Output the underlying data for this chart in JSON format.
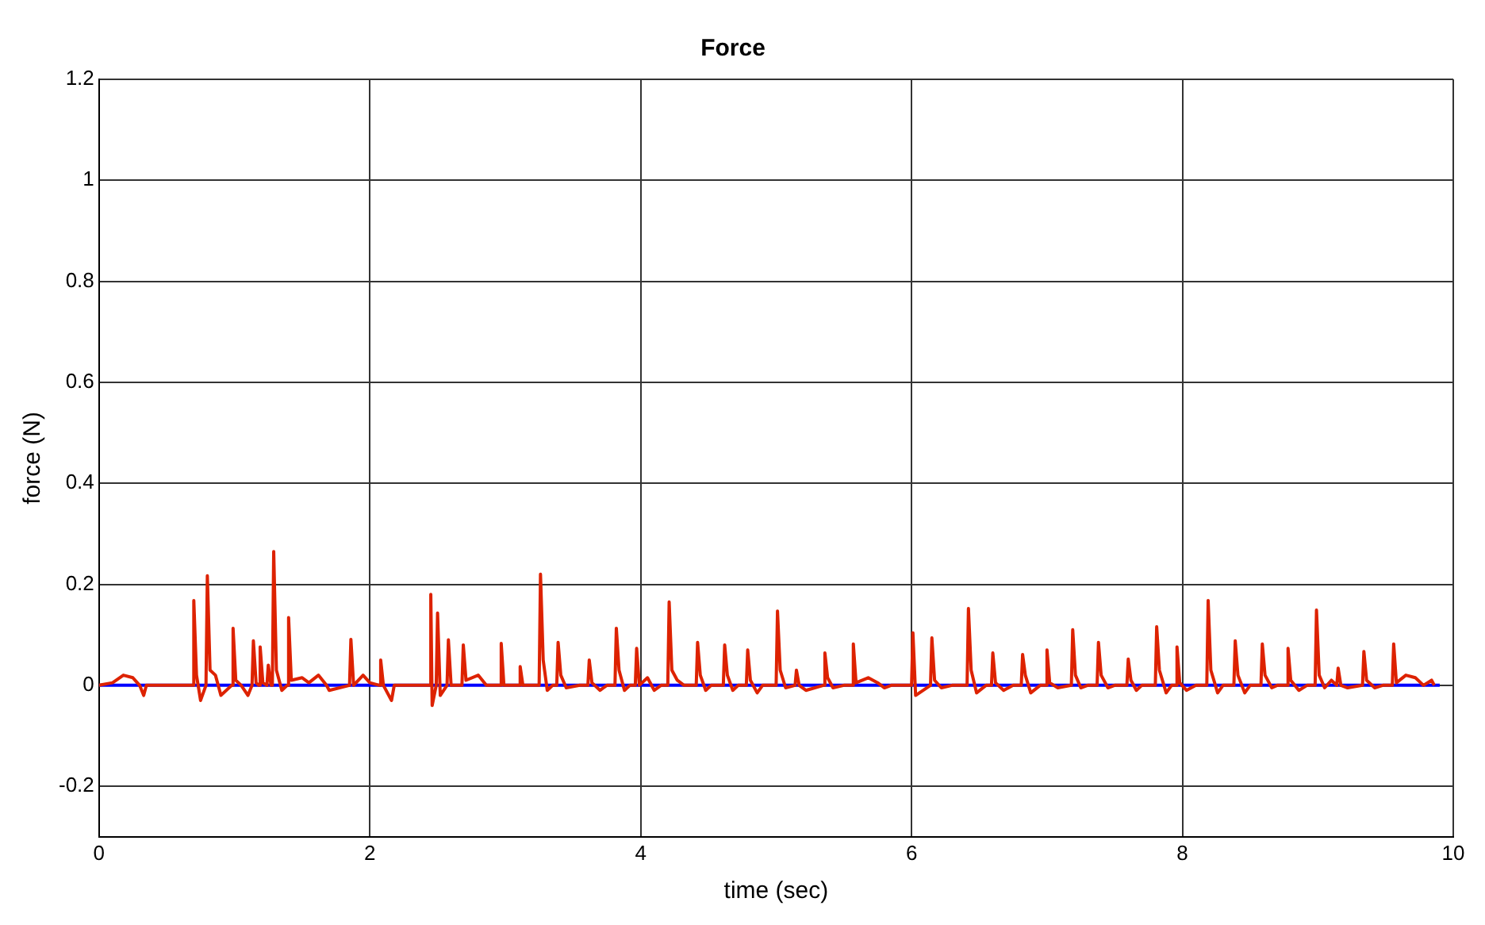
{
  "chart_data": {
    "type": "line",
    "title": "Force",
    "xlabel": "time (sec)",
    "ylabel": "force (N)",
    "xlim": [
      0,
      10
    ],
    "xticks": [
      0,
      2,
      4,
      6,
      8,
      10
    ],
    "ylim": [
      -0.3,
      1.2
    ],
    "yticks": [
      -0.2,
      0,
      0.2,
      0.4,
      0.6,
      0.8,
      1,
      1.2
    ],
    "grid": true,
    "line_style": "solid",
    "marker": "none",
    "series": [
      {
        "color": "#0000ff",
        "x": [
          0,
          9.9
        ],
        "values": [
          0,
          0
        ]
      },
      {
        "color": "#dd2200",
        "x": [
          0,
          0.1,
          0.18,
          0.25,
          0.3,
          0.33,
          0.35,
          0.7,
          0.7,
          0.72,
          0.75,
          0.79,
          0.8,
          0.82,
          0.86,
          0.9,
          0.98,
          0.99,
          1.01,
          1.05,
          1.1,
          1.13,
          1.14,
          1.16,
          1.18,
          1.19,
          1.21,
          1.24,
          1.25,
          1.27,
          1.28,
          1.29,
          1.31,
          1.35,
          1.39,
          1.4,
          1.42,
          1.5,
          1.55,
          1.62,
          1.68,
          1.7,
          1.85,
          1.86,
          1.88,
          1.95,
          2.0,
          2.07,
          2.08,
          2.1,
          2.16,
          2.18,
          2.45,
          2.45,
          2.46,
          2.49,
          2.5,
          2.52,
          2.57,
          2.58,
          2.6,
          2.68,
          2.69,
          2.71,
          2.8,
          2.86,
          2.96,
          2.97,
          2.99,
          3.1,
          3.11,
          3.13,
          3.25,
          3.26,
          3.28,
          3.31,
          3.35,
          3.38,
          3.39,
          3.41,
          3.45,
          3.55,
          3.61,
          3.62,
          3.64,
          3.7,
          3.75,
          3.81,
          3.82,
          3.84,
          3.88,
          3.92,
          3.96,
          3.97,
          3.99,
          4.05,
          4.1,
          4.15,
          4.2,
          4.21,
          4.23,
          4.27,
          4.32,
          4.41,
          4.42,
          4.44,
          4.48,
          4.52,
          4.61,
          4.62,
          4.64,
          4.68,
          4.72,
          4.78,
          4.79,
          4.81,
          4.86,
          4.9,
          5.0,
          5.01,
          5.03,
          5.07,
          5.14,
          5.15,
          5.17,
          5.22,
          5.35,
          5.36,
          5.38,
          5.42,
          5.5,
          5.56,
          5.57,
          5.59,
          5.68,
          5.75,
          5.8,
          5.85,
          6.0,
          6.01,
          6.03,
          6.14,
          6.15,
          6.17,
          6.22,
          6.3,
          6.41,
          6.42,
          6.44,
          6.48,
          6.55,
          6.59,
          6.6,
          6.62,
          6.68,
          6.75,
          6.81,
          6.82,
          6.84,
          6.88,
          6.95,
          6.99,
          7.0,
          7.02,
          7.08,
          7.18,
          7.19,
          7.21,
          7.25,
          7.3,
          7.37,
          7.38,
          7.4,
          7.45,
          7.5,
          7.59,
          7.6,
          7.62,
          7.66,
          7.7,
          7.8,
          7.81,
          7.83,
          7.88,
          7.92,
          7.95,
          7.96,
          7.98,
          8.03,
          8.1,
          8.18,
          8.19,
          8.21,
          8.26,
          8.3,
          8.38,
          8.39,
          8.41,
          8.46,
          8.5,
          8.58,
          8.59,
          8.61,
          8.66,
          8.7,
          8.77,
          8.78,
          8.8,
          8.86,
          8.92,
          8.98,
          8.99,
          9.01,
          9.05,
          9.1,
          9.14,
          9.15,
          9.17,
          9.22,
          9.33,
          9.34,
          9.36,
          9.42,
          9.48,
          9.55,
          9.56,
          9.58,
          9.65,
          9.72,
          9.78,
          9.84,
          9.86
        ],
        "values": [
          0,
          0.005,
          0.02,
          0.015,
          0,
          -0.02,
          0,
          0,
          0.168,
          0.02,
          -0.03,
          0,
          0.217,
          0.03,
          0.02,
          -0.02,
          0,
          0.113,
          0.01,
          0,
          -0.02,
          0,
          0.088,
          0.005,
          0,
          0.076,
          0.005,
          0,
          0.04,
          0,
          0,
          0.265,
          0.03,
          -0.01,
          0,
          0.134,
          0.01,
          0.015,
          0.005,
          0.02,
          0,
          -0.01,
          0,
          0.091,
          0,
          0.02,
          0.005,
          0,
          0.05,
          0,
          -0.03,
          0,
          0,
          0.18,
          -0.04,
          0,
          0.143,
          -0.02,
          0,
          0.09,
          0,
          0,
          0.08,
          0.01,
          0.02,
          0,
          0,
          0.083,
          0,
          0,
          0.037,
          0,
          0,
          0.22,
          0.05,
          -0.01,
          0,
          0,
          0.085,
          0.02,
          -0.005,
          0,
          0,
          0.05,
          0.005,
          -0.01,
          0,
          0,
          0.113,
          0.03,
          -0.01,
          0,
          0,
          0.073,
          0,
          0.015,
          -0.01,
          0,
          0,
          0.165,
          0.03,
          0.01,
          0,
          0,
          0.085,
          0.02,
          -0.01,
          0,
          0,
          0.08,
          0.02,
          -0.01,
          0,
          0,
          0.07,
          0.01,
          -0.015,
          0,
          0,
          0.147,
          0.03,
          -0.005,
          0,
          0.03,
          0,
          -0.01,
          0,
          0.064,
          0.015,
          -0.005,
          0,
          0,
          0.082,
          0.005,
          0.015,
          0.005,
          -0.005,
          0,
          0,
          0.104,
          -0.02,
          0,
          0.094,
          0.01,
          -0.005,
          0,
          0,
          0.152,
          0.03,
          -0.015,
          0,
          0,
          0.064,
          0.005,
          -0.01,
          0,
          0,
          0.061,
          0.02,
          -0.015,
          0,
          0,
          0.07,
          0.005,
          -0.005,
          0,
          0.11,
          0.02,
          -0.005,
          0,
          0,
          0.085,
          0.02,
          -0.005,
          0,
          0,
          0.052,
          0.01,
          -0.01,
          0,
          0,
          0.116,
          0.03,
          -0.015,
          0,
          0,
          0.076,
          0.005,
          -0.01,
          0,
          0,
          0.168,
          0.03,
          -0.015,
          0,
          0,
          0.088,
          0.02,
          -0.015,
          0,
          0,
          0.082,
          0.02,
          -0.005,
          0,
          0,
          0.073,
          0.01,
          -0.01,
          0,
          0,
          0.149,
          0.02,
          -0.005,
          0.01,
          0,
          0.034,
          0,
          -0.005,
          0,
          0.067,
          0.01,
          -0.005,
          0,
          0,
          0.082,
          0.005,
          0.02,
          0.015,
          0,
          0.01,
          0
        ]
      }
    ]
  }
}
